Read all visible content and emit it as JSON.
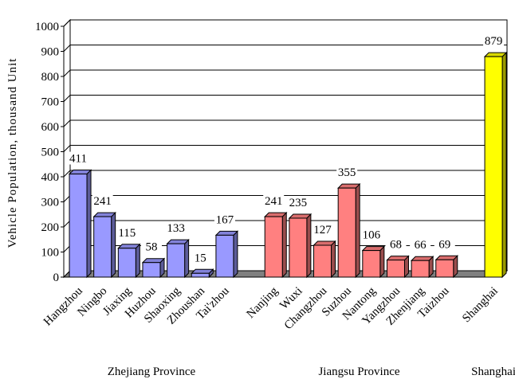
{
  "chart_data": {
    "type": "bar3d",
    "y_label": "Vehicle Population, thousand Unit",
    "ylim": [
      0,
      1000
    ],
    "yticks": [
      0,
      100,
      200,
      300,
      400,
      500,
      600,
      700,
      800,
      900,
      1000
    ],
    "grid": true,
    "groups": [
      {
        "name": "Zhejiang Province",
        "color": "#9999ff",
        "categories": [
          "Hangzhou",
          "Ningbo",
          "Jiaxing",
          "Huzhou",
          "Shaoxing",
          "Zhoushan",
          "Tai'zhou"
        ],
        "values": [
          411,
          241,
          115,
          58,
          133,
          15,
          167
        ]
      },
      {
        "name": "Jiangsu Province",
        "color": "#ff8080",
        "categories": [
          "Nanjing",
          "Wuxi",
          "Changzhou",
          "Suzhou",
          "Nantong",
          "Yangzhou",
          "Zhenjiang",
          "Taizhou"
        ],
        "values": [
          241,
          235,
          127,
          355,
          106,
          68,
          66,
          69
        ]
      },
      {
        "name": "Shanghai",
        "color": "#ffff00",
        "categories": [
          "Shanghai"
        ],
        "values": [
          879
        ]
      }
    ]
  }
}
